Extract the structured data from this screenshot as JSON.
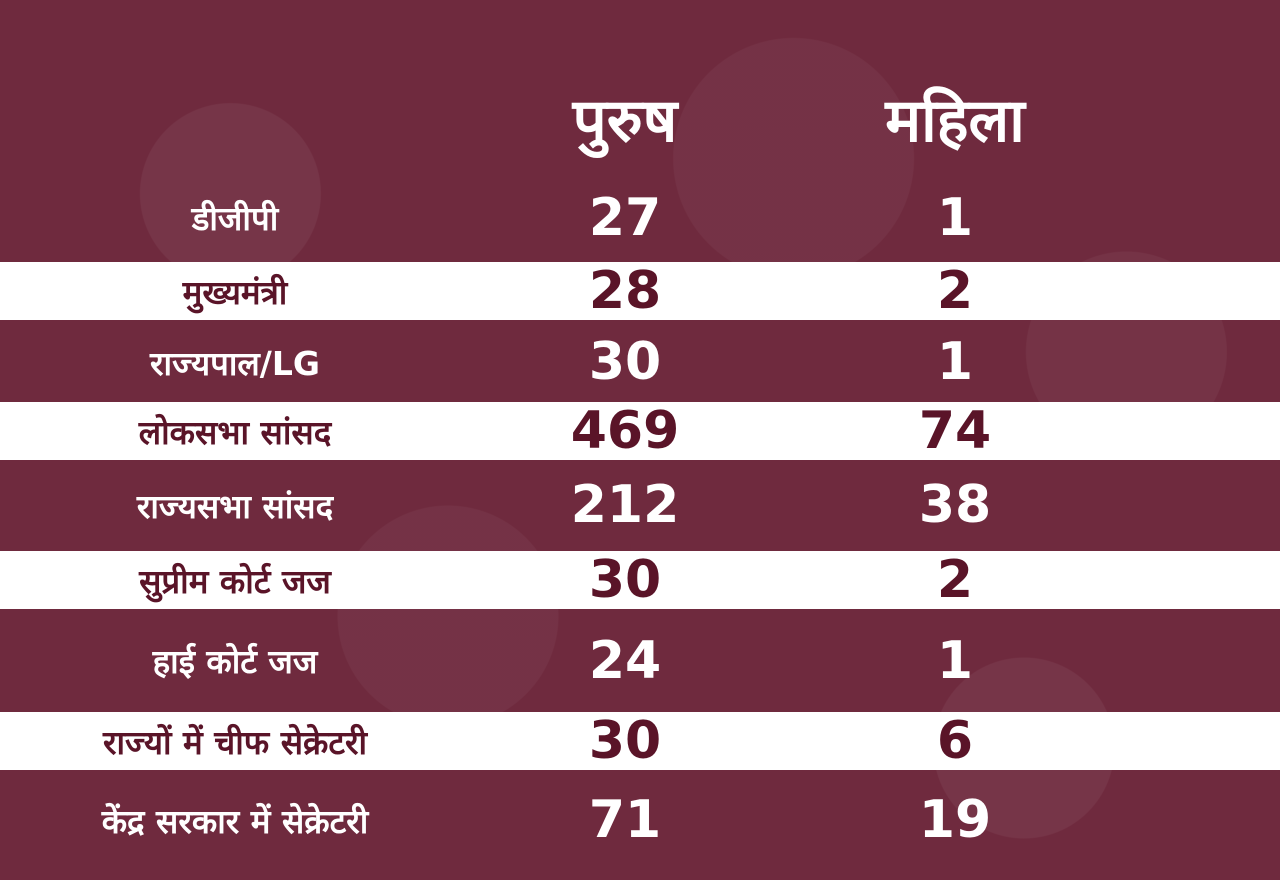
{
  "chart_data": {
    "type": "table",
    "columns": [
      "पुरुष",
      "महिला"
    ],
    "rows": [
      {
        "label": "डीजीपी",
        "male": 27,
        "female": 1
      },
      {
        "label": "मुख्यमंत्री",
        "male": 28,
        "female": 2
      },
      {
        "label": "राज्यपाल/LG",
        "male": 30,
        "female": 1
      },
      {
        "label": "लोकसभा सांसद",
        "male": 469,
        "female": 74
      },
      {
        "label": "राज्यसभा सांसद",
        "male": 212,
        "female": 38
      },
      {
        "label": "सुप्रीम कोर्ट जज",
        "male": 30,
        "female": 2
      },
      {
        "label": "हाई कोर्ट जज",
        "male": 24,
        "female": 1
      },
      {
        "label": "राज्यों में चीफ सेक्रेटरी",
        "male": 30,
        "female": 6
      },
      {
        "label": "केंद्र सरकार में सेक्रेटरी",
        "male": 71,
        "female": 19
      }
    ]
  },
  "colors": {
    "background": "#6f2a3e",
    "band_light": "#ffffff",
    "text_on_dark": "#ffffff",
    "text_on_light": "#5a1428"
  }
}
